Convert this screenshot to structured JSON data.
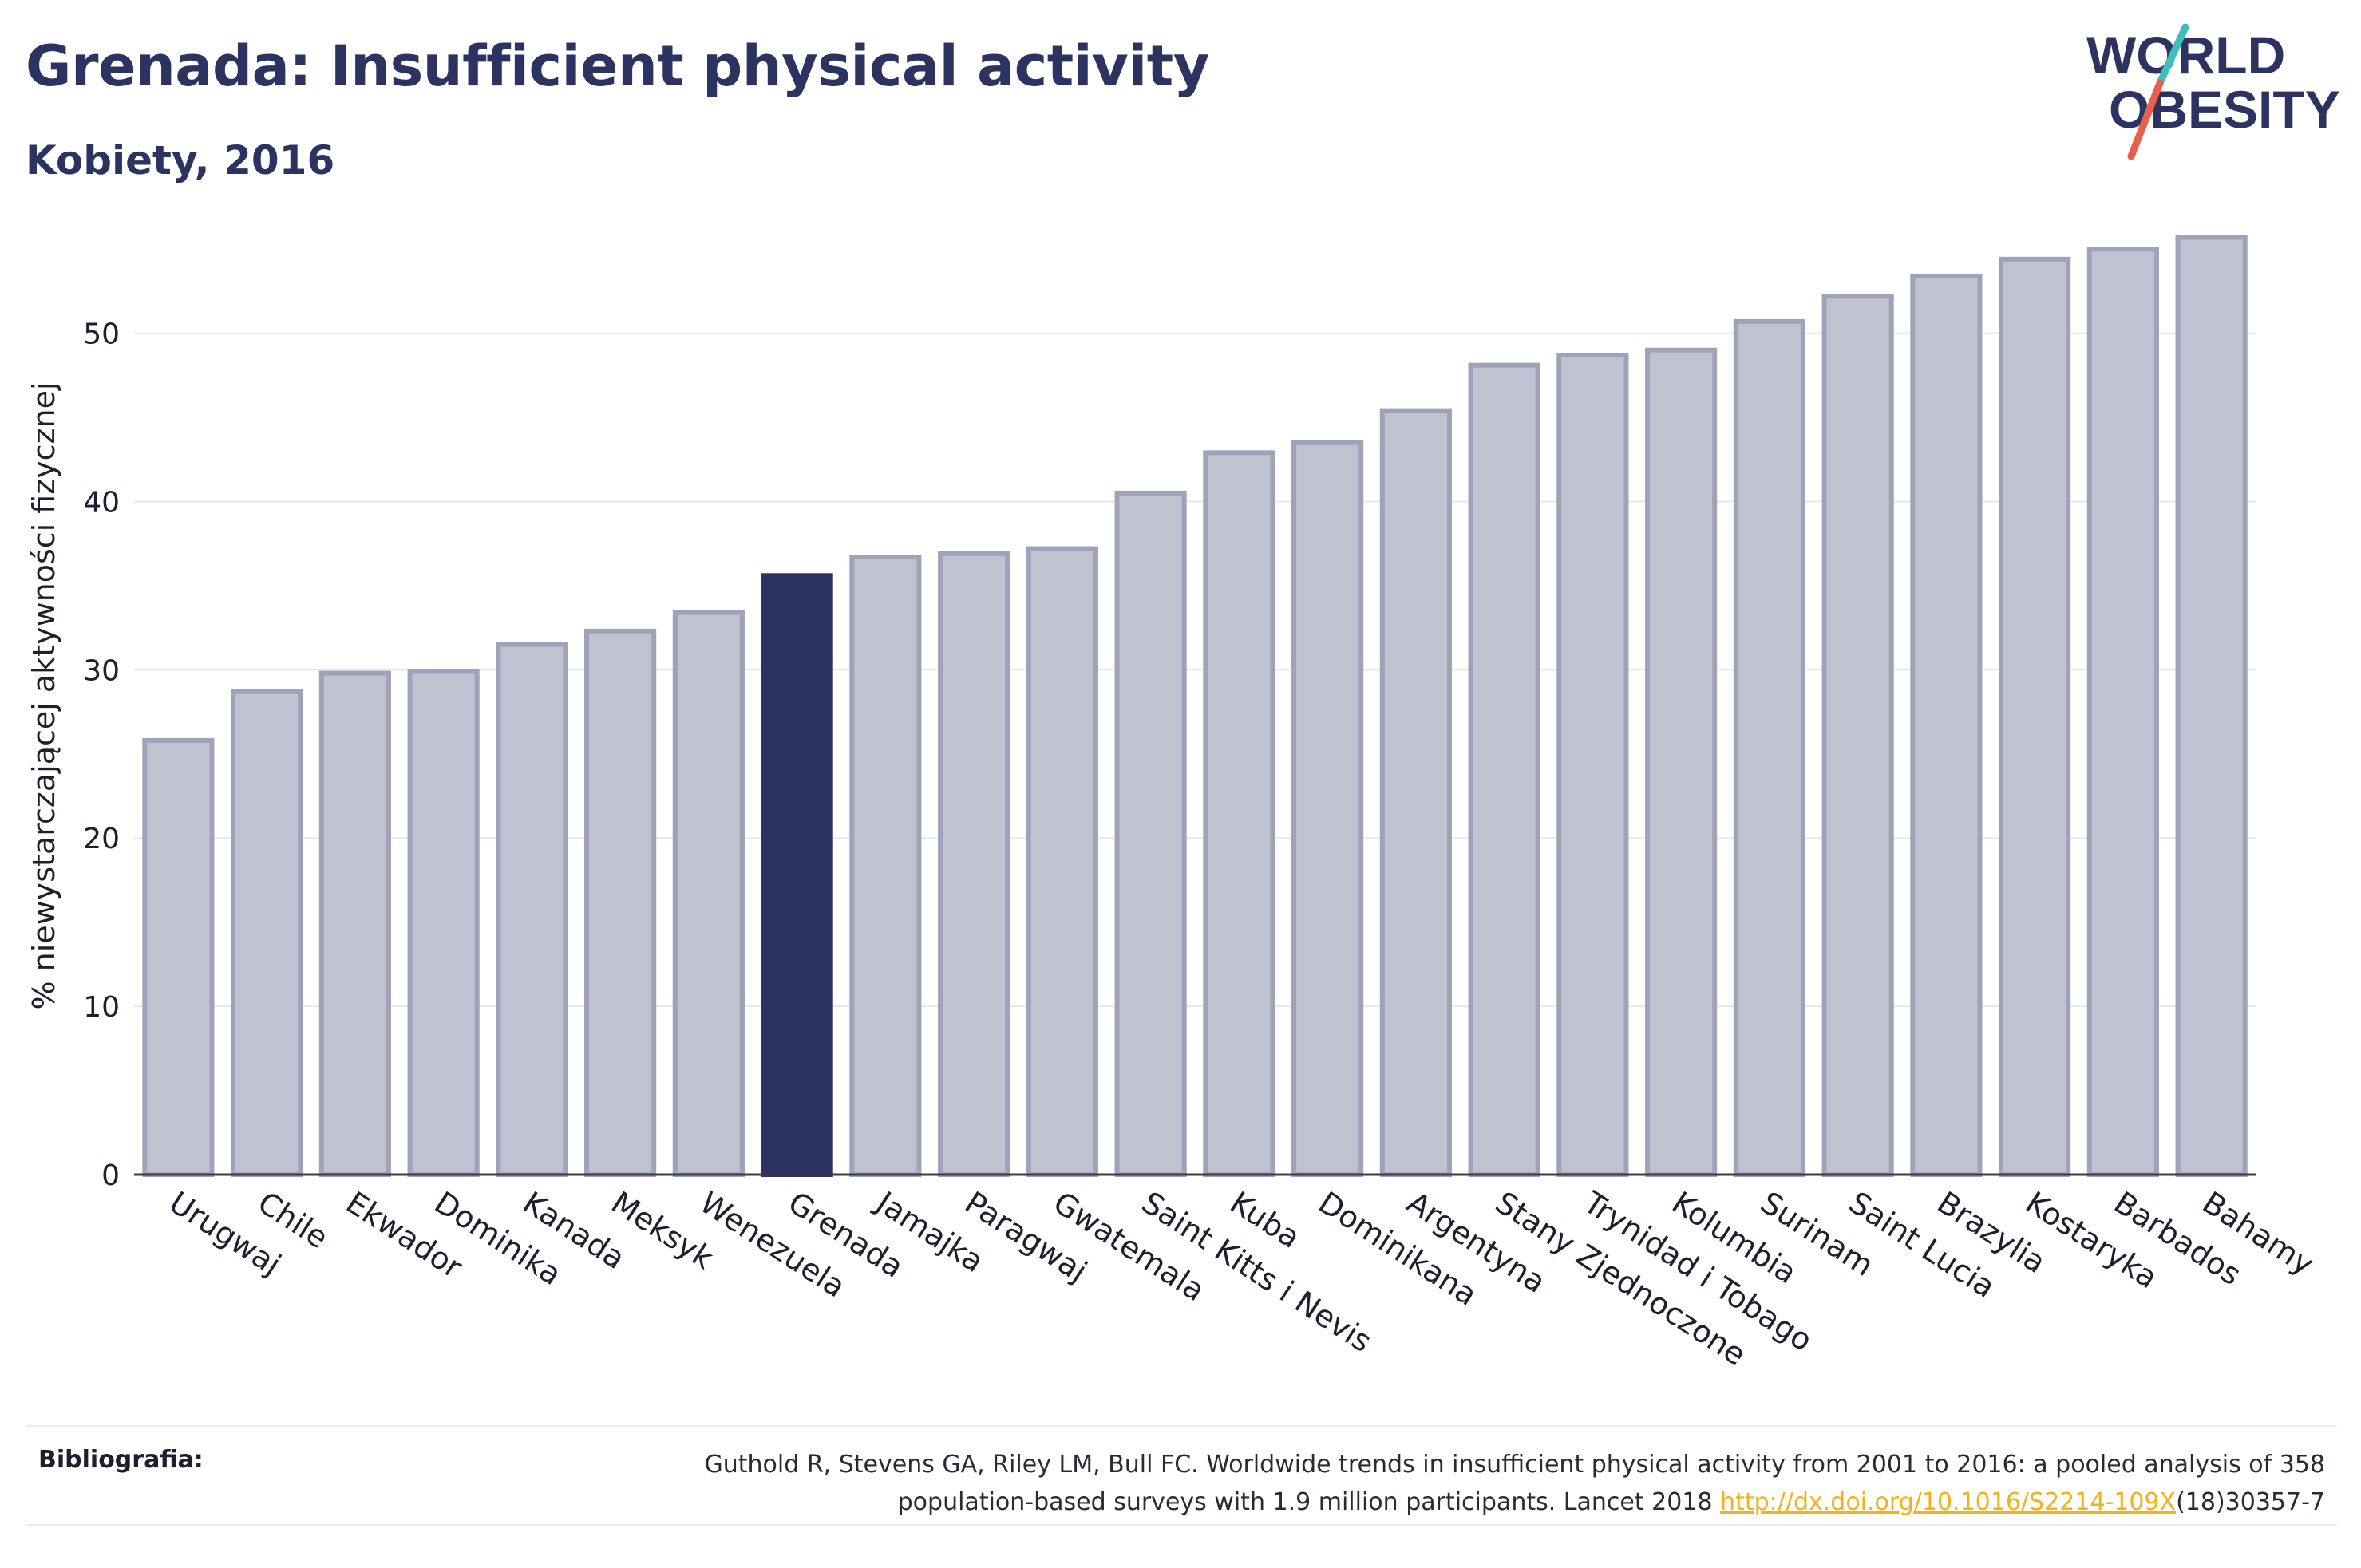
{
  "header": {
    "title": "Grenada: Insufficient physical activity",
    "subtitle": "Kobiety, 2016"
  },
  "logo": {
    "line1": "WORLD",
    "line2": "OBESITY",
    "slash_colors": [
      "#3bbfb8",
      "#e8604c"
    ],
    "text_color": "#2b3460"
  },
  "colors": {
    "bar_fill": "#bfc2d0",
    "bar_stroke": "#9ea3ba",
    "highlight_fill": "#2b3460",
    "grid": "#e6e6ee",
    "axis": "#3a3a46"
  },
  "chart_data": {
    "type": "bar",
    "title": "Grenada: Insufficient physical activity",
    "subtitle": "Kobiety, 2016",
    "xlabel": "",
    "ylabel": "% niewystarczającej aktywności fizycznej",
    "ylim": [
      0,
      57
    ],
    "yticks": [
      0,
      10,
      20,
      30,
      40,
      50
    ],
    "grid": true,
    "highlight": "Grenada",
    "categories": [
      "Urugwaj",
      "Chile",
      "Ekwador",
      "Dominika",
      "Kanada",
      "Meksyk",
      "Wenezuela",
      "Grenada",
      "Jamajka",
      "Paragwaj",
      "Gwatemala",
      "Saint Kitts i Nevis",
      "Kuba",
      "Dominikana",
      "Argentyna",
      "Stany Zjednoczone",
      "Trynidad i Tobago",
      "Kolumbia",
      "Surinam",
      "Saint Lucia",
      "Brazylia",
      "Kostaryka",
      "Barbados",
      "Bahamy"
    ],
    "values": [
      25.8,
      28.7,
      29.8,
      29.9,
      31.5,
      32.3,
      33.4,
      35.6,
      36.7,
      36.9,
      37.2,
      40.5,
      42.9,
      43.5,
      45.4,
      48.1,
      48.7,
      49.0,
      50.7,
      52.2,
      53.4,
      54.4,
      55.0,
      55.7
    ]
  },
  "footer": {
    "label": "Bibliografia:",
    "citation_line1": "Guthold R, Stevens GA, Riley LM, Bull FC. Worldwide trends in insufficient physical activity from 2001 to 2016: a pooled analysis of 358",
    "citation_line2_pre": "population-based surveys with 1.9 million participants. Lancet 2018 ",
    "citation_link": "http://dx.doi.org/10.1016/S2214-109X",
    "citation_line2_post": "(18)30357-7"
  }
}
